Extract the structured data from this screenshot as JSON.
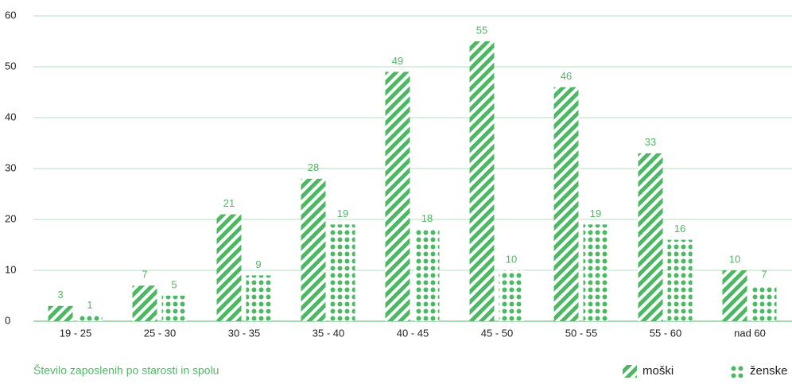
{
  "chart_data": {
    "type": "bar",
    "title": "Število zaposlenih po starosti in spolu",
    "categories": [
      "19 - 25",
      "25 - 30",
      "30 - 35",
      "35 - 40",
      "40 - 45",
      "45 - 50",
      "50 - 55",
      "55 - 60",
      "nad 60"
    ],
    "series": [
      {
        "name": "moški",
        "color": "#4cb863",
        "pattern": "stripes",
        "values": [
          3,
          7,
          21,
          28,
          49,
          55,
          46,
          33,
          10
        ]
      },
      {
        "name": "ženske",
        "color": "#4cb863",
        "pattern": "dots",
        "values": [
          1,
          5,
          9,
          19,
          18,
          10,
          19,
          16,
          7
        ]
      }
    ],
    "ylim": [
      0,
      60
    ],
    "yticks": [
      0,
      10,
      20,
      30,
      40,
      50,
      60
    ],
    "grid": true,
    "legend": "bottom-right"
  }
}
